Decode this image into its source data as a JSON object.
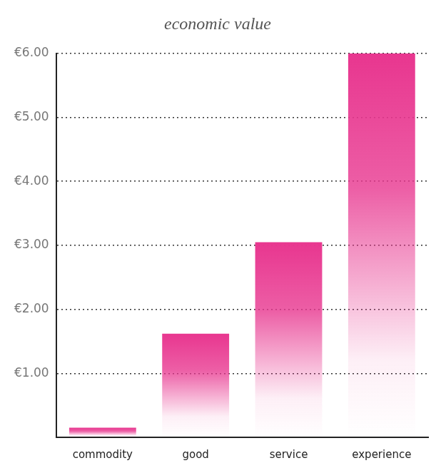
{
  "chart_data": {
    "type": "bar",
    "title": "economic value",
    "categories": [
      "commodity",
      "good",
      "service",
      "experience"
    ],
    "values": [
      0.15,
      1.62,
      3.05,
      6.0
    ],
    "color": "#e8368f",
    "ylim": [
      0,
      6
    ],
    "yticks": [
      {
        "value": 1,
        "label": "€1.00"
      },
      {
        "value": 2,
        "label": "€2.00"
      },
      {
        "value": 3,
        "label": "€3.00"
      },
      {
        "value": 4,
        "label": "€4.00"
      },
      {
        "value": 5,
        "label": "€5.00"
      },
      {
        "value": 6,
        "label": "€6.00"
      }
    ],
    "grid": true
  }
}
